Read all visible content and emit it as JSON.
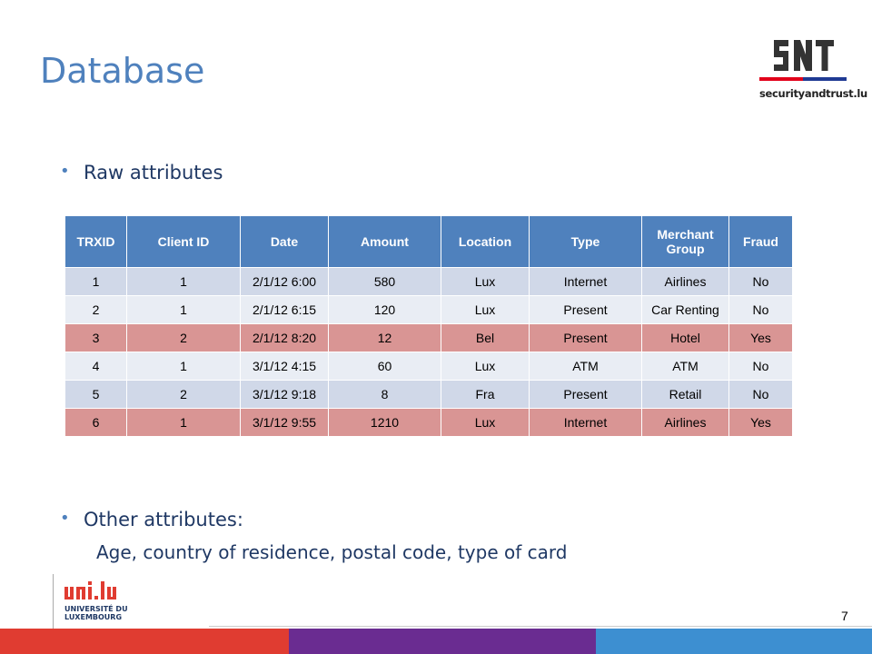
{
  "slide": {
    "title": "Database",
    "page_number": "7"
  },
  "logos": {
    "snt": {
      "letters": "SNT",
      "caption": "securityandtrust.lu",
      "colors": {
        "red": "#e2001a",
        "blue": "#1f3a93"
      }
    },
    "unilu": {
      "mark": "uni.lu",
      "caption_line1": "UNIVERSITÉ DU",
      "caption_line2": "LUXEMBOURG",
      "color": "#e03c31"
    }
  },
  "bullets": {
    "first": "Raw attributes",
    "second": "Other attributes:",
    "second_detail": "Age, country of residence, postal code, type of card"
  },
  "table": {
    "headers": [
      "TRXID",
      "Client ID",
      "Date",
      "Amount",
      "Location",
      "Type",
      "Merchant Group",
      "Fraud"
    ],
    "rows": [
      [
        "1",
        "1",
        "2/1/12 6:00",
        "580",
        "Lux",
        "Internet",
        "Airlines",
        "No"
      ],
      [
        "2",
        "1",
        "2/1/12 6:15",
        "120",
        "Lux",
        "Present",
        "Car Renting",
        "No"
      ],
      [
        "3",
        "2",
        "2/1/12 8:20",
        "12",
        "Bel",
        "Present",
        "Hotel",
        "Yes"
      ],
      [
        "4",
        "1",
        "3/1/12 4:15",
        "60",
        "Lux",
        "ATM",
        "ATM",
        "No"
      ],
      [
        "5",
        "2",
        "3/1/12 9:18",
        "8",
        "Fra",
        "Present",
        "Retail",
        "No"
      ],
      [
        "6",
        "1",
        "3/1/12 9:55",
        "1210",
        "Lux",
        "Internet",
        "Airlines",
        "Yes"
      ]
    ],
    "colors": {
      "header": "#4f81bd",
      "row_odd": "#d0d8e8",
      "row_even": "#e9edf4",
      "row_fraud": "#d99594"
    }
  },
  "footer": {
    "colors": [
      "#e03c31",
      "#6a2c91",
      "#3d8fd1"
    ]
  }
}
